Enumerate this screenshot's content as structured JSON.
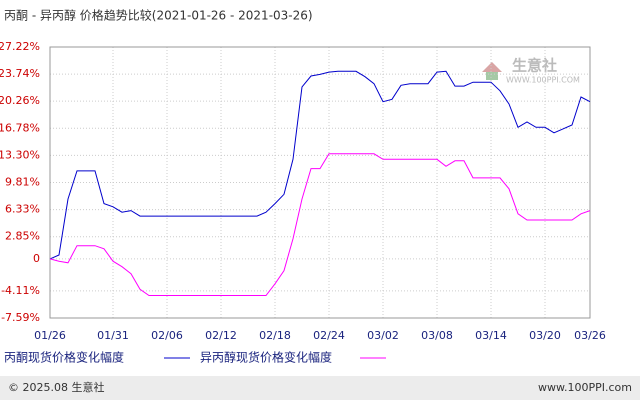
{
  "chart_data": {
    "type": "line",
    "title": "丙酮 - 异丙醇 价格趋势比较(2021-01-26 - 2021-03-26)",
    "categories": [
      "01/26",
      null,
      null,
      null,
      null,
      null,
      null,
      "01/31",
      null,
      null,
      null,
      null,
      null,
      "02/06",
      null,
      null,
      null,
      null,
      null,
      "02/12",
      null,
      null,
      null,
      null,
      null,
      "02/18",
      null,
      null,
      null,
      null,
      null,
      "02/24",
      null,
      null,
      null,
      null,
      null,
      "03/02",
      null,
      null,
      null,
      null,
      null,
      "03/08",
      null,
      null,
      null,
      null,
      null,
      "03/14",
      null,
      null,
      null,
      null,
      null,
      "03/20",
      null,
      null,
      null,
      null,
      "03/26"
    ],
    "series": [
      {
        "name": "丙酮现货价格变化幅度",
        "color": "#0000cc",
        "values": [
          0,
          0.5,
          7.7,
          11.3,
          11.3,
          11.3,
          7.1,
          6.7,
          6.0,
          6.2,
          5.5,
          5.5,
          5.5,
          5.5,
          5.5,
          5.5,
          5.5,
          5.5,
          5.5,
          5.5,
          5.5,
          5.5,
          5.5,
          5.5,
          6.0,
          7.1,
          8.3,
          12.8,
          22.1,
          23.5,
          23.7,
          24.0,
          24.1,
          24.1,
          24.1,
          23.4,
          22.5,
          20.2,
          20.5,
          22.3,
          22.5,
          22.5,
          22.5,
          24.0,
          24.1,
          22.2,
          22.2,
          22.7,
          22.7,
          22.7,
          21.6,
          19.9,
          16.9,
          17.6,
          16.9,
          16.9,
          16.2,
          16.7,
          17.2,
          20.8,
          20.2
        ]
      },
      {
        "name": "异丙醇现货价格变化幅度",
        "color": "#ff00ff",
        "values": [
          0,
          -0.3,
          -0.5,
          1.7,
          1.7,
          1.7,
          1.3,
          -0.3,
          -1.0,
          -1.9,
          -3.9,
          -4.7,
          -4.7,
          -4.7,
          -4.7,
          -4.7,
          -4.7,
          -4.7,
          -4.7,
          -4.7,
          -4.7,
          -4.7,
          -4.7,
          -4.7,
          -4.7,
          -3.2,
          -1.5,
          2.6,
          7.7,
          11.6,
          11.6,
          13.5,
          13.5,
          13.5,
          13.5,
          13.5,
          13.5,
          12.8,
          12.8,
          12.8,
          12.8,
          12.8,
          12.8,
          12.8,
          11.9,
          12.6,
          12.6,
          10.4,
          10.4,
          10.4,
          10.4,
          9.0,
          5.8,
          5.0,
          5.0,
          5.0,
          5.0,
          5.0,
          5.0,
          5.8,
          6.2
        ]
      }
    ],
    "ylim": [
      -7.59,
      27.22
    ],
    "yticks": [
      {
        "value": 27.22,
        "label": "27.22%"
      },
      {
        "value": 23.74,
        "label": "23.74%"
      },
      {
        "value": 20.26,
        "label": "20.26%"
      },
      {
        "value": 16.78,
        "label": "16.78%"
      },
      {
        "value": 13.3,
        "label": "13.30%"
      },
      {
        "value": 9.81,
        "label": "9.81%"
      },
      {
        "value": 6.33,
        "label": "6.33%"
      },
      {
        "value": 2.85,
        "label": "2.85%"
      },
      0,
      {
        "value": -4.11,
        "label": "-4.11%"
      },
      {
        "value": -7.59,
        "label": "-7.59%"
      }
    ],
    "grid": true,
    "watermark": "生意社",
    "watermark_url": "WWW.100PPI.COM",
    "footer_left": "© 2025.08 生意社",
    "footer_right": "www.100PPI.com"
  }
}
